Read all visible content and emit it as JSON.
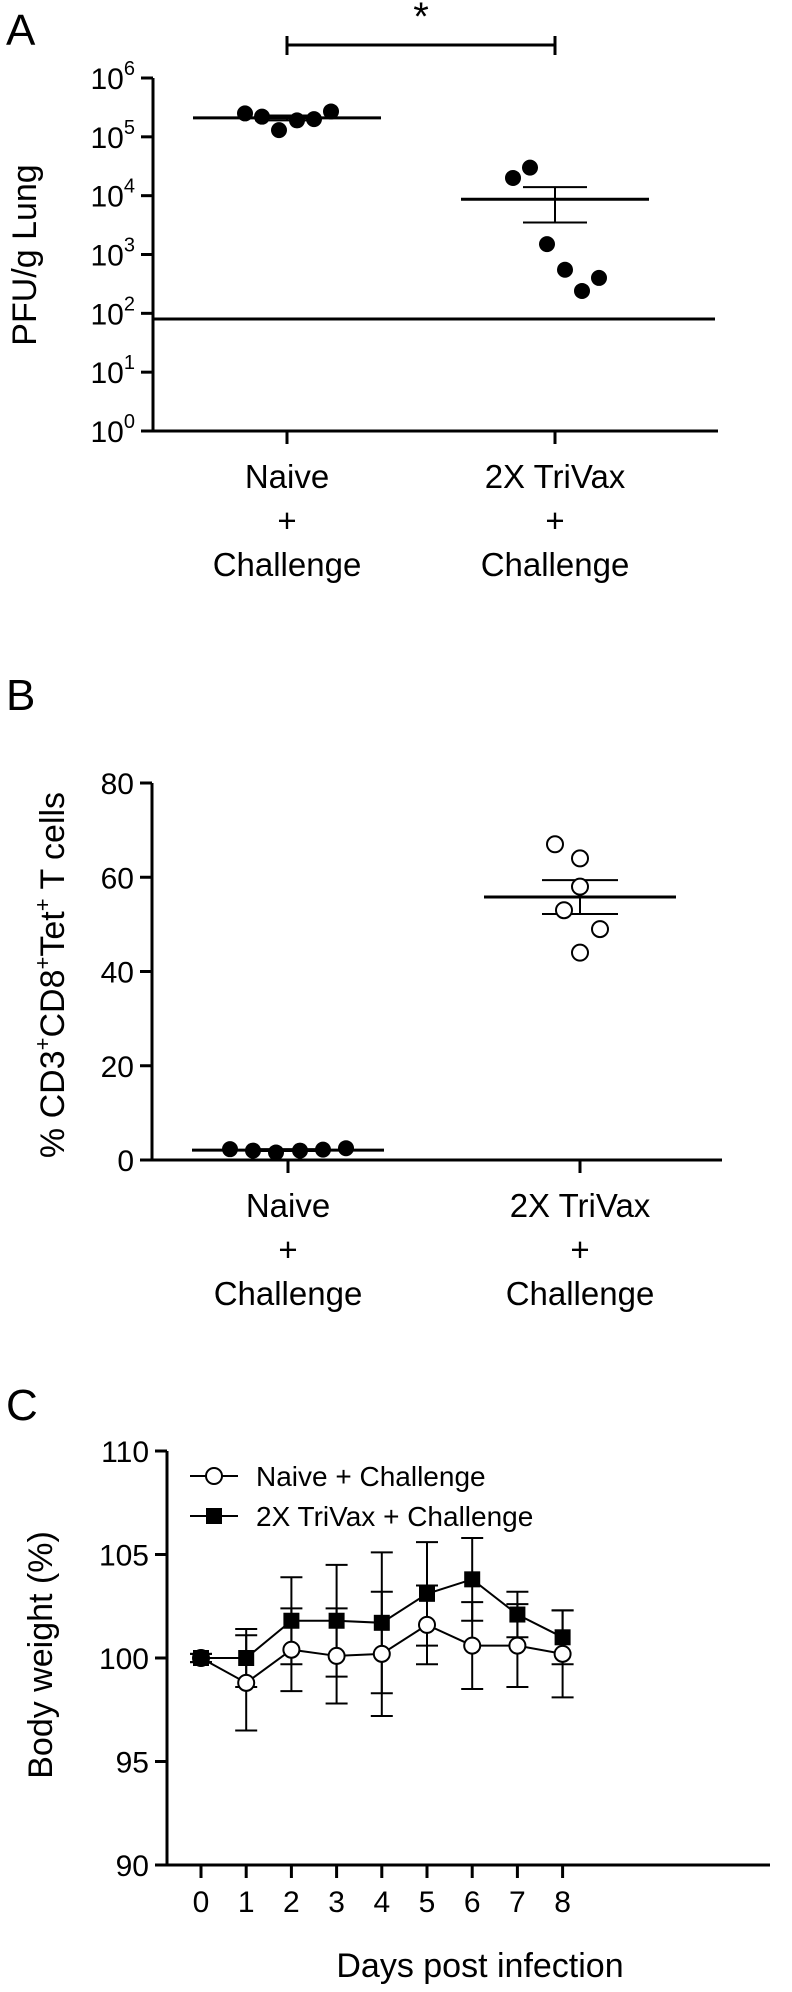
{
  "chart_data": [
    {
      "panel": "A",
      "type": "scatter",
      "ylabel": "PFU/g Lung",
      "yscale": "log",
      "ylim": [
        1,
        1000000
      ],
      "yticks": [
        {
          "value": 1,
          "base": "10",
          "exp": "0"
        },
        {
          "value": 10,
          "base": "10",
          "exp": "1"
        },
        {
          "value": 100,
          "base": "10",
          "exp": "2"
        },
        {
          "value": 1000,
          "base": "10",
          "exp": "3"
        },
        {
          "value": 10000,
          "base": "10",
          "exp": "4"
        },
        {
          "value": 100000,
          "base": "10",
          "exp": "5"
        },
        {
          "value": 1000000,
          "base": "10",
          "exp": "6"
        }
      ],
      "categories": [
        {
          "lines": [
            "Naive",
            "+",
            "Challenge"
          ]
        },
        {
          "lines": [
            "2X TriVax",
            "+",
            "Challenge"
          ]
        }
      ],
      "groups": [
        {
          "marker": "filled-circle",
          "points": [
            250000,
            220000,
            130000,
            190000,
            200000,
            270000
          ],
          "mean": 210000,
          "sem": [
            190000,
            230000
          ]
        },
        {
          "marker": "filled-circle",
          "points": [
            20000,
            30000,
            1500,
            550,
            240,
            400
          ],
          "mean": 8700,
          "sem": [
            3500,
            14000
          ]
        }
      ],
      "detection_limit": 80,
      "significance": "*"
    },
    {
      "panel": "B",
      "type": "scatter",
      "ylabel_parts": [
        {
          "t": "% CD3",
          "sup": false
        },
        {
          "t": "+",
          "sup": true
        },
        {
          "t": "CD8",
          "sup": false
        },
        {
          "t": "+",
          "sup": true
        },
        {
          "t": "Tet",
          "sup": false
        },
        {
          "t": "+",
          "sup": true
        },
        {
          "t": " T cells",
          "sup": false
        }
      ],
      "ylim": [
        0,
        80
      ],
      "yticks": [
        "0",
        "20",
        "40",
        "60",
        "80"
      ],
      "categories": [
        {
          "lines": [
            "Naive",
            "+",
            "Challenge"
          ]
        },
        {
          "lines": [
            "2X TriVax",
            "+",
            "Challenge"
          ]
        }
      ],
      "groups": [
        {
          "marker": "filled-circle",
          "points": [
            2.3,
            2.0,
            1.6,
            2.0,
            2.2,
            2.5
          ],
          "mean": 2.1,
          "sem": [
            1.9,
            2.3
          ]
        },
        {
          "marker": "open-circle",
          "points": [
            67,
            64,
            58,
            53,
            49,
            44
          ],
          "mean": 55.8,
          "sem": [
            52.2,
            59.4
          ]
        }
      ]
    },
    {
      "panel": "C",
      "type": "line",
      "xlabel": "Days post infection",
      "ylabel": "Body weight (%)",
      "ylim": [
        90,
        110
      ],
      "yticks": [
        "90",
        "95",
        "100",
        "105",
        "110"
      ],
      "x": [
        0,
        1,
        2,
        3,
        4,
        5,
        6,
        7,
        8
      ],
      "xticks": [
        "0",
        "1",
        "2",
        "3",
        "4",
        "5",
        "6",
        "7",
        "8"
      ],
      "legend_position": "top-left",
      "series": [
        {
          "name": "Naive + Challenge",
          "marker": "open-circle",
          "values": [
            100.0,
            98.8,
            100.4,
            100.1,
            100.2,
            101.6,
            100.6,
            100.6,
            100.2
          ],
          "err": [
            0.2,
            2.3,
            2.0,
            2.3,
            3.0,
            1.9,
            2.1,
            2.0,
            2.1
          ]
        },
        {
          "name": "2X TriVax + Challenge",
          "marker": "filled-square",
          "values": [
            100.0,
            100.0,
            101.8,
            101.8,
            101.7,
            103.1,
            103.8,
            102.1,
            101.0
          ],
          "err": [
            0.2,
            1.4,
            2.1,
            2.7,
            3.4,
            2.5,
            2.0,
            1.1,
            1.3
          ]
        }
      ]
    }
  ]
}
